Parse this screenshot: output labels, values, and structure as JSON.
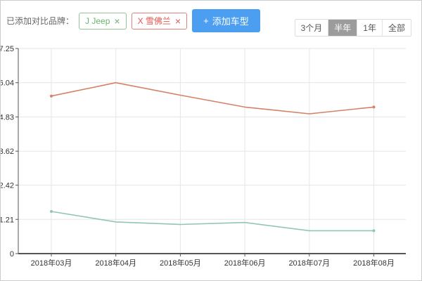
{
  "toolbar": {
    "label": "已添加对比品牌：",
    "tags": [
      {
        "label": "J Jeep",
        "close": "×",
        "text_color": "#6ab46a",
        "border_color": "#93c493"
      },
      {
        "label": "X 雪佛兰",
        "close": "×",
        "text_color": "#e2574d",
        "border_color": "#e2837c"
      }
    ],
    "add_button": {
      "icon": "+",
      "label": "添加车型",
      "bg_color": "#4b9ef0"
    }
  },
  "time_range": {
    "options": [
      "3个月",
      "半年",
      "1年",
      "全部"
    ],
    "selected": "半年",
    "selected_bg": "#9c9c9c",
    "selected_text": "#ffffff"
  },
  "chart_data": {
    "type": "line",
    "categories": [
      "2018年03月",
      "2018年04月",
      "2018年05月",
      "2018年06月",
      "2018年07月",
      "2018年08月"
    ],
    "series": [
      {
        "name": "雪佛兰",
        "color": "#d48265",
        "values": [
          5.57,
          6.04,
          5.6,
          5.18,
          4.94,
          5.18
        ]
      },
      {
        "name": "Jeep",
        "color": "#91c7ae",
        "values": [
          1.49,
          1.12,
          1.03,
          1.1,
          0.81,
          0.81
        ]
      }
    ],
    "title": "",
    "xlabel": "",
    "ylabel": "",
    "ylim": [
      0,
      7.25
    ],
    "yticks": [
      0,
      1.21,
      2.42,
      3.62,
      4.83,
      6.04,
      7.25
    ],
    "ytick_labels": [
      "0",
      "1.21",
      "2.42",
      "3.62",
      "4.83",
      "6.04",
      "7.25"
    ],
    "grid": true,
    "legend_position": "none",
    "colors": {
      "gridline": "#e6e6e6",
      "axis": "#555555",
      "tick_label": "#333333"
    }
  }
}
